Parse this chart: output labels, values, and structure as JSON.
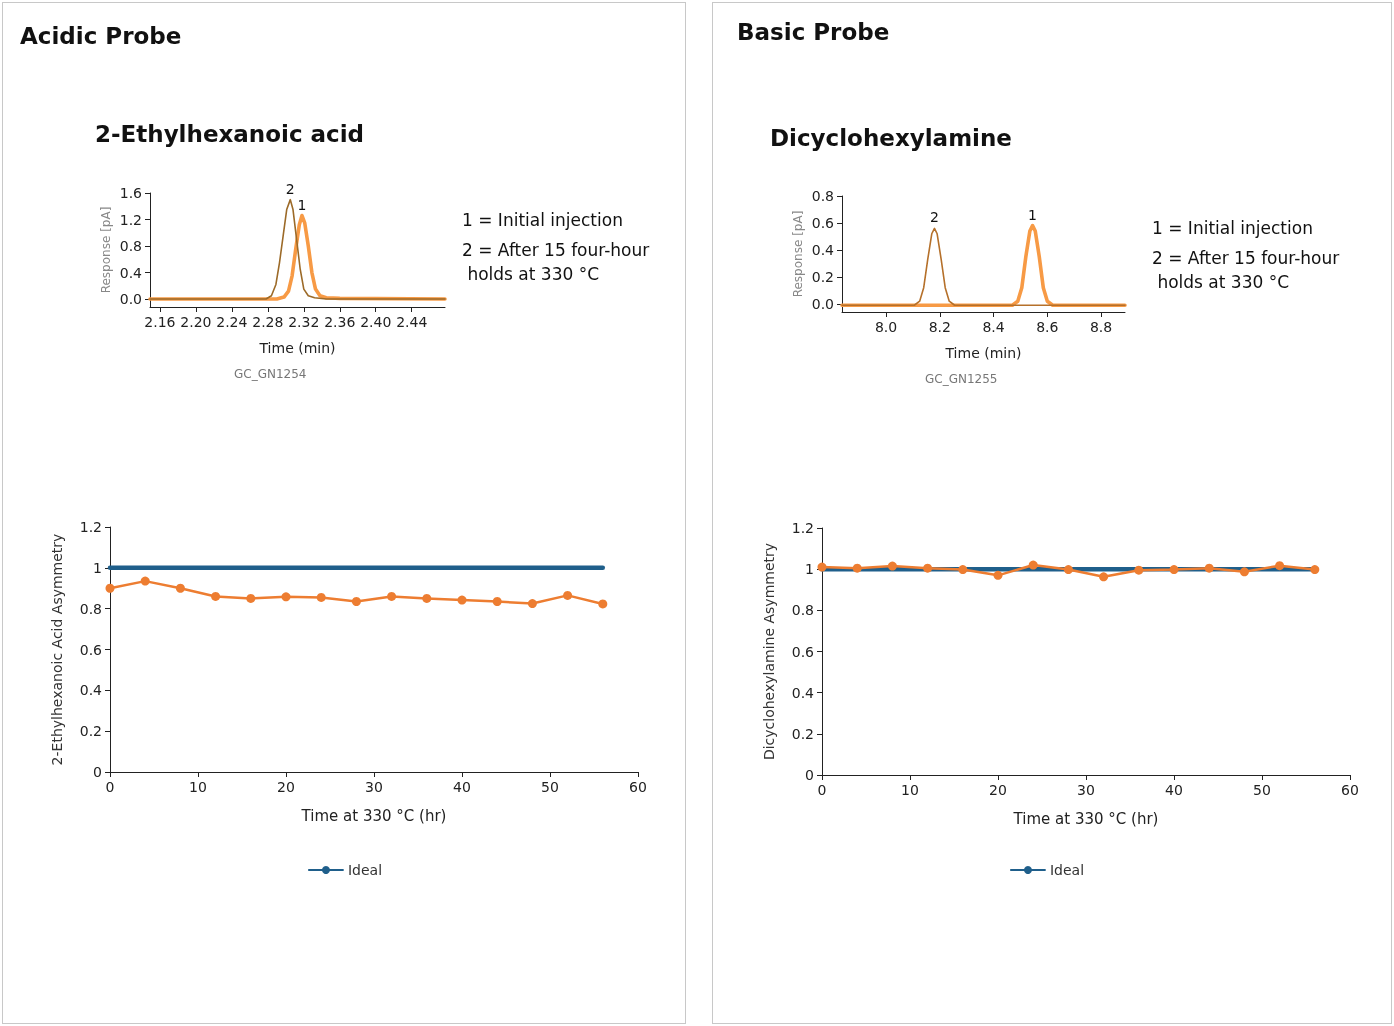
{
  "chart_data": [
    {
      "type": "line",
      "title": "2-Ethylhexanoic acid",
      "xlabel": "Time (min)",
      "ylabel": "Response [pA]",
      "annotations": [
        "Acidic Probe",
        "1 = Initial injection",
        "2 = After 15 four-hour holds at 330 °C",
        "GC_GN1254",
        {
          "text": "2",
          "x": 2.305,
          "y": 1.5
        },
        {
          "text": "1",
          "x": 2.318,
          "y": 1.26
        }
      ],
      "xlim": [
        2.149,
        2.477
      ],
      "xticks": [
        2.16,
        {
          "value": 2.2,
          "label": "2.20"
        },
        2.24,
        2.28,
        2.32,
        2.36,
        {
          "value": 2.4,
          "label": "2.40"
        },
        2.44
      ],
      "ylim": [
        -0.12,
        1.6
      ],
      "yticks": [
        {
          "value": 0,
          "label": "0.0"
        },
        0.4,
        0.8,
        1.2,
        1.6
      ],
      "grid": false,
      "legend": false,
      "marker": "none",
      "line_style": "solid",
      "series": [
        {
          "color": "#f79a45",
          "x": [
            2.149,
            2.29,
            2.298,
            2.303,
            2.307,
            2.311,
            2.315,
            2.318,
            2.321,
            2.325,
            2.329,
            2.333,
            2.338,
            2.345,
            2.36,
            2.477
          ],
          "values": [
            0.0,
            0.0,
            0.03,
            0.12,
            0.35,
            0.75,
            1.12,
            1.26,
            1.15,
            0.8,
            0.4,
            0.15,
            0.05,
            0.02,
            0.01,
            0.0
          ]
        },
        {
          "color": "#9c6a28",
          "x": [
            2.149,
            2.278,
            2.284,
            2.289,
            2.293,
            2.297,
            2.301,
            2.305,
            2.308,
            2.312,
            2.316,
            2.32,
            2.325,
            2.332,
            2.345,
            2.477
          ],
          "values": [
            0.0,
            0.0,
            0.05,
            0.22,
            0.55,
            0.95,
            1.35,
            1.5,
            1.35,
            0.9,
            0.45,
            0.15,
            0.05,
            0.02,
            0.0,
            0.0
          ]
        }
      ]
    },
    {
      "type": "line",
      "title": "Dicyclohexylamine",
      "xlabel": "Time (min)",
      "ylabel": "Response [pA]",
      "annotations": [
        "Basic Probe",
        "1 = Initial injection",
        "2 = After 15 four-hour holds at 330 °C",
        "GC_GN1255",
        {
          "text": "2",
          "x": 8.18,
          "y": 0.56
        },
        {
          "text": "1",
          "x": 8.545,
          "y": 0.58
        }
      ],
      "xlim": [
        7.836,
        8.889
      ],
      "xticks": [
        {
          "value": 8,
          "label": "8.0"
        },
        8.2,
        8.4,
        8.6,
        8.8
      ],
      "ylim": [
        -0.06,
        0.8
      ],
      "yticks": [
        {
          "value": 0,
          "label": "0.0"
        },
        0.2,
        0.4,
        0.6,
        0.8
      ],
      "grid": false,
      "legend": false,
      "marker": "none",
      "line_style": "solid",
      "series": [
        {
          "color": "#f79a45",
          "x": [
            7.836,
            8.47,
            8.49,
            8.505,
            8.52,
            8.535,
            8.545,
            8.555,
            8.57,
            8.585,
            8.6,
            8.62,
            8.889
          ],
          "values": [
            -0.01,
            -0.01,
            0.02,
            0.12,
            0.35,
            0.54,
            0.58,
            0.54,
            0.35,
            0.12,
            0.02,
            -0.01,
            -0.01
          ]
        },
        {
          "color": "#b5702a",
          "x": [
            7.836,
            8.105,
            8.125,
            8.14,
            8.155,
            8.17,
            8.18,
            8.19,
            8.205,
            8.22,
            8.235,
            8.255,
            8.889
          ],
          "values": [
            -0.01,
            -0.01,
            0.02,
            0.12,
            0.33,
            0.52,
            0.56,
            0.52,
            0.33,
            0.12,
            0.02,
            -0.01,
            -0.01
          ]
        }
      ]
    },
    {
      "type": "line",
      "xlabel": "Time at 330 °C (hr)",
      "ylabel": "2-Ethylhexanoic Acid Asymmetry",
      "xlim": [
        0,
        60
      ],
      "xticks": [
        0,
        10,
        20,
        30,
        40,
        50,
        60
      ],
      "ylim": [
        0,
        1.2
      ],
      "yticks": [
        0,
        0.2,
        0.4,
        0.6,
        0.8,
        1,
        1.2
      ],
      "grid": false,
      "legend": "bottom",
      "line_style": "solid",
      "series": [
        {
          "name": "Ideal",
          "color": "#1f5f8b",
          "marker": "none",
          "x": [
            0,
            56
          ],
          "values": [
            1,
            1
          ]
        },
        {
          "color": "#ed7d31",
          "marker": "circle",
          "x": [
            0,
            4,
            8,
            12,
            16,
            20,
            24,
            28,
            32,
            36,
            40,
            44,
            48,
            52,
            56
          ],
          "values": [
            0.9,
            0.935,
            0.9,
            0.86,
            0.85,
            0.858,
            0.855,
            0.835,
            0.86,
            0.85,
            0.842,
            0.835,
            0.825,
            0.865,
            0.823
          ]
        }
      ]
    },
    {
      "type": "line",
      "xlabel": "Time at 330 °C (hr)",
      "ylabel": "Dicyclohexylamine Asymmetry",
      "xlim": [
        0,
        60
      ],
      "xticks": [
        0,
        10,
        20,
        30,
        40,
        50,
        60
      ],
      "ylim": [
        0,
        1.2
      ],
      "yticks": [
        0,
        0.2,
        0.4,
        0.6,
        0.8,
        1,
        1.2
      ],
      "grid": false,
      "legend": "bottom",
      "line_style": "solid",
      "series": [
        {
          "name": "Ideal",
          "color": "#1f5f8b",
          "marker": "none",
          "x": [
            0,
            56
          ],
          "values": [
            1,
            1
          ]
        },
        {
          "color": "#ed7d31",
          "marker": "circle",
          "x": [
            0,
            4,
            8,
            12,
            16,
            20,
            24,
            28,
            32,
            36,
            40,
            44,
            48,
            52,
            56
          ],
          "values": [
            1.01,
            1.005,
            1.015,
            1.005,
            0.998,
            0.97,
            1.02,
            0.998,
            0.963,
            0.995,
            0.998,
            1.005,
            0.987,
            1.017,
            0.998
          ]
        }
      ]
    }
  ]
}
